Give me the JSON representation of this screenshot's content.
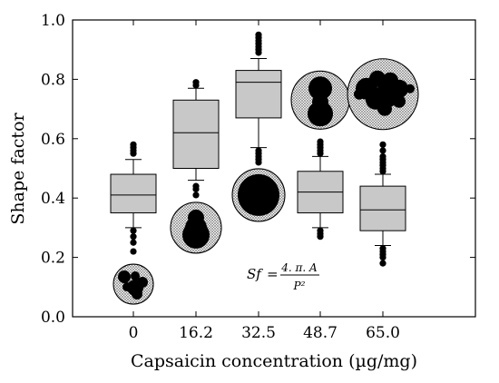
{
  "chart_data": {
    "type": "box",
    "title": "",
    "xlabel": "Capsaicin concentration (µg/mg)",
    "ylabel": "Shape factor",
    "ylim": [
      0.0,
      1.0
    ],
    "yticks": [
      "0.0",
      "0.2",
      "0.4",
      "0.6",
      "0.8",
      "1.0"
    ],
    "categories": [
      "0",
      "16.2",
      "32.5",
      "48.7",
      "65.0"
    ],
    "box_fill": "#c8c8c8",
    "series": [
      {
        "category": "0",
        "whisker_low": 0.3,
        "q1": 0.35,
        "median": 0.41,
        "q3": 0.48,
        "whisker_high": 0.53,
        "outliers": [
          0.55,
          0.56,
          0.57,
          0.58,
          0.29,
          0.27,
          0.25,
          0.22
        ]
      },
      {
        "category": "16.2",
        "whisker_low": 0.46,
        "q1": 0.5,
        "median": 0.62,
        "q3": 0.73,
        "whisker_high": 0.77,
        "outliers": [
          0.78,
          0.79,
          0.44,
          0.43,
          0.41
        ]
      },
      {
        "category": "32.5",
        "whisker_low": 0.57,
        "q1": 0.67,
        "median": 0.79,
        "q3": 0.83,
        "whisker_high": 0.87,
        "outliers": [
          0.89,
          0.9,
          0.91,
          0.92,
          0.93,
          0.94,
          0.95,
          0.56,
          0.55,
          0.54,
          0.53,
          0.52
        ]
      },
      {
        "category": "48.7",
        "whisker_low": 0.3,
        "q1": 0.35,
        "median": 0.42,
        "q3": 0.49,
        "whisker_high": 0.54,
        "outliers": [
          0.55,
          0.56,
          0.57,
          0.58,
          0.59,
          0.29,
          0.28,
          0.27
        ]
      },
      {
        "category": "65.0",
        "whisker_low": 0.24,
        "q1": 0.29,
        "median": 0.36,
        "q3": 0.44,
        "whisker_high": 0.48,
        "outliers": [
          0.49,
          0.5,
          0.51,
          0.52,
          0.53,
          0.54,
          0.56,
          0.58,
          0.23,
          0.22,
          0.21,
          0.2,
          0.18
        ]
      }
    ],
    "cell_images": [
      {
        "category": "0",
        "center_y": 0.11,
        "shape": "lobed-cluster"
      },
      {
        "category": "16.2",
        "center_y": 0.3,
        "shape": "pear"
      },
      {
        "category": "32.5",
        "center_y": 0.41,
        "shape": "round"
      },
      {
        "category": "48.7",
        "center_y": 0.73,
        "shape": "peanut"
      },
      {
        "category": "65.0",
        "center_y": 0.75,
        "shape": "lobed-large"
      }
    ],
    "annotation": {
      "lhs": "Sf",
      "equals": "=",
      "numerator": "4. π. A",
      "denominator": "P²"
    }
  }
}
